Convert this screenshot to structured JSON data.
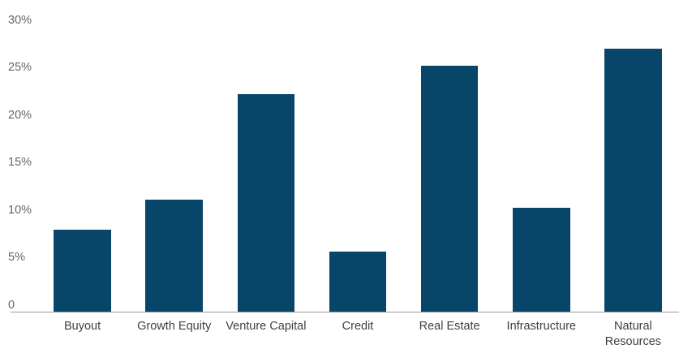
{
  "chart_data": {
    "type": "bar",
    "title": "",
    "xlabel": "",
    "ylabel": "",
    "categories": [
      "Buyout",
      "Growth Equity",
      "Venture Capital",
      "Credit",
      "Real Estate",
      "Infrastructure",
      "Natural Resources"
    ],
    "values": [
      7.9,
      11.1,
      22.2,
      5.6,
      25.2,
      10.2,
      27.0
    ],
    "ylim": [
      0,
      30
    ],
    "ytick_values": [
      30,
      25,
      20,
      15,
      10,
      5,
      0
    ],
    "ytick_labels": [
      "30%",
      "25%",
      "20%",
      "15%",
      "10%",
      "5%",
      "0"
    ],
    "grid": false,
    "legend": false,
    "bar_color": "#074569",
    "axis_line_color": "#9b9b9b",
    "ytick_label_color": "#666666",
    "xtick_label_color": "#3f3f3f",
    "background_color": "#ffffff"
  }
}
